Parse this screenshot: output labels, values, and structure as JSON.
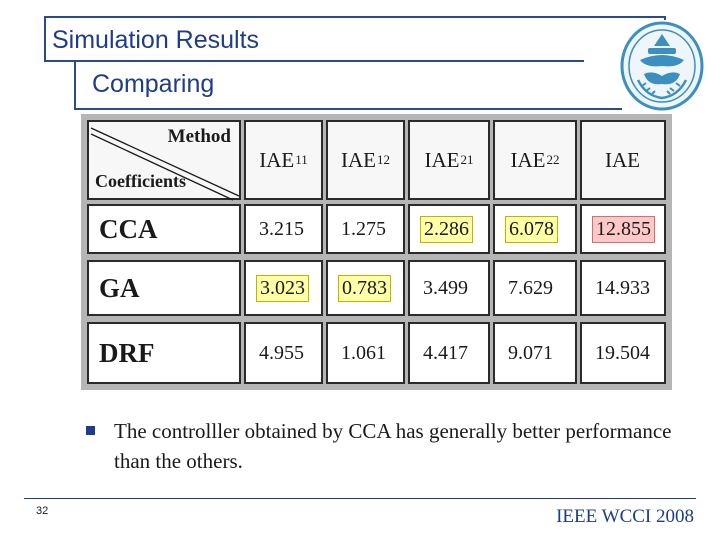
{
  "slide": {
    "title": "Simulation Results",
    "subtitle": "Comparing",
    "page_number": "32",
    "conference": "IEEE WCCI 2008",
    "accent_color": "#1f3c8a"
  },
  "table": {
    "corner_top": "Method",
    "corner_bottom": "Coefficients",
    "headers": [
      {
        "main": "IAE",
        "sub": "11"
      },
      {
        "main": "IAE",
        "sub": "12"
      },
      {
        "main": "IAE",
        "sub": "21"
      },
      {
        "main": "IAE",
        "sub": "22"
      },
      {
        "main": "IAE",
        "sub": ""
      }
    ],
    "rows": [
      {
        "method": "CCA",
        "values": [
          "3.215",
          "1.275",
          "2.286",
          "6.078",
          "12.855"
        ],
        "highlight": [
          "",
          "",
          "yellow",
          "yellow",
          "pink"
        ]
      },
      {
        "method": "GA",
        "values": [
          "3.023",
          "0.783",
          "3.499",
          "7.629",
          "14.933"
        ],
        "highlight": [
          "yellow",
          "yellow",
          "",
          "",
          ""
        ]
      },
      {
        "method": "DRF",
        "values": [
          "4.955",
          "1.061",
          "4.417",
          "9.071",
          "19.504"
        ],
        "highlight": [
          "",
          "",
          "",
          "",
          ""
        ]
      }
    ]
  },
  "bullet": {
    "text": "The controlller obtained by CCA has generally better performance than the others."
  }
}
